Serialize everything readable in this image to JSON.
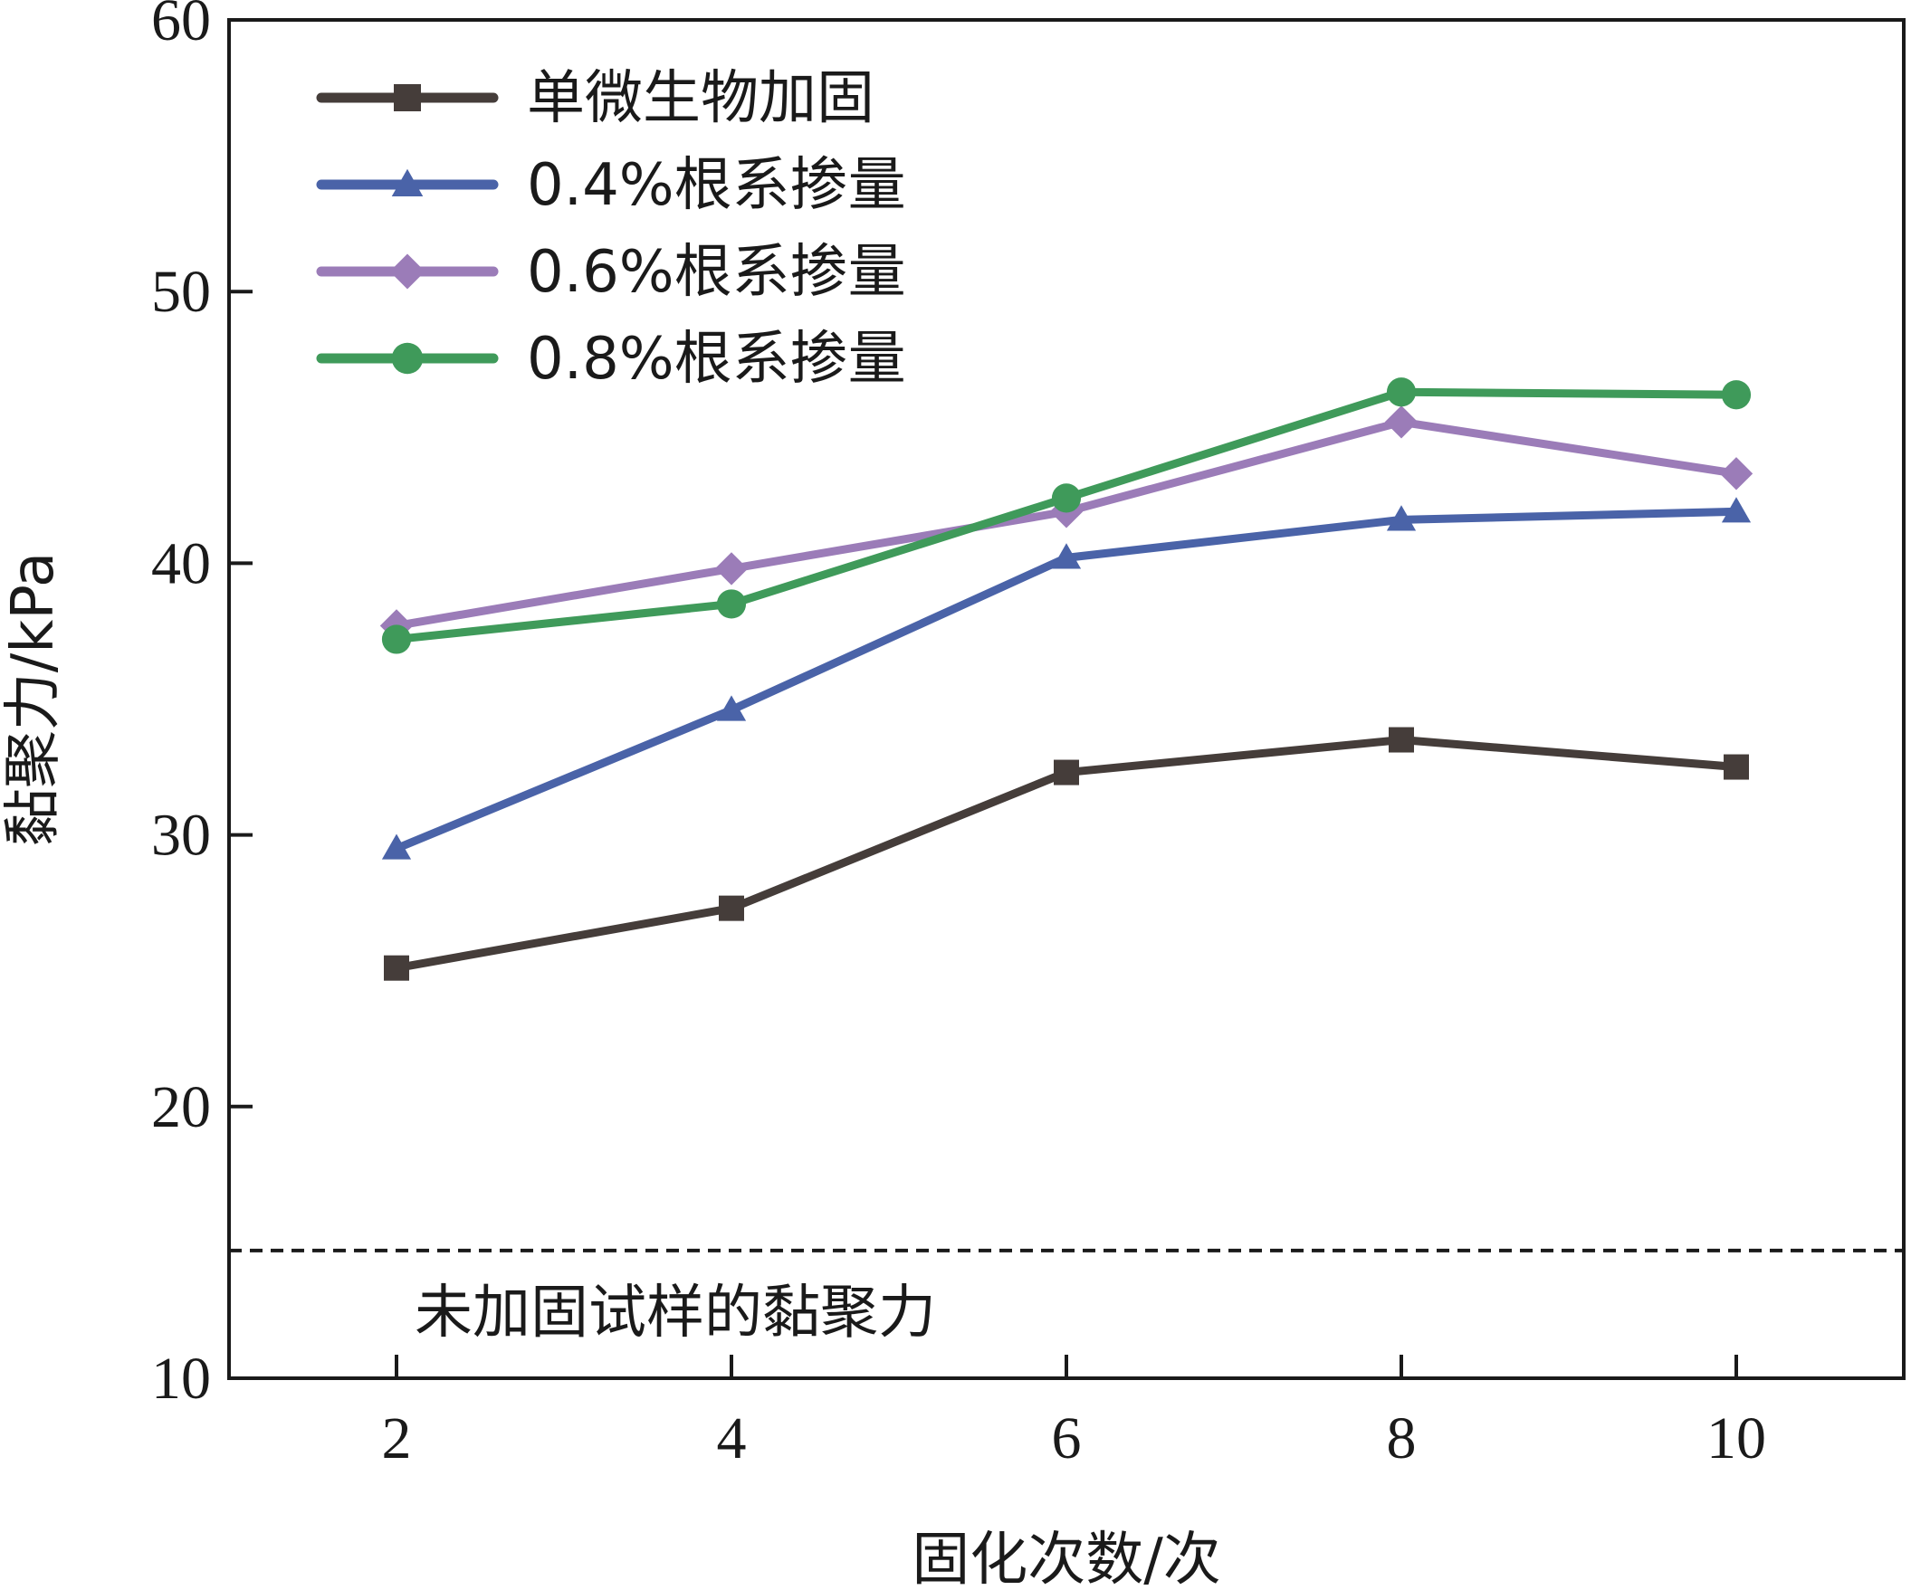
{
  "chart_data": {
    "type": "line",
    "title": "",
    "xlabel": "固化次数/次",
    "ylabel": "黏聚力/kPa",
    "xlim": [
      1,
      11
    ],
    "ylim": [
      10,
      60
    ],
    "x_ticks": [
      "2",
      "4",
      "6",
      "8",
      "10"
    ],
    "y_ticks": [
      "10",
      "20",
      "30",
      "40",
      "50",
      "60"
    ],
    "grid": false,
    "legend_position": "top-left",
    "x": [
      2,
      4,
      6,
      8,
      10
    ],
    "series": [
      {
        "name": "单微生物加固",
        "values": [
          25.1,
          27.3,
          32.3,
          33.5,
          32.5
        ],
        "color": "#453d3a",
        "marker": "square"
      },
      {
        "name": "0.4%根系掺量",
        "values": [
          29.5,
          34.6,
          40.2,
          41.6,
          41.9
        ],
        "color": "#4a63a8",
        "marker": "triangle"
      },
      {
        "name": "0.6%根系掺量",
        "values": [
          37.7,
          39.8,
          41.9,
          45.2,
          43.3
        ],
        "color": "#9b7cb8",
        "marker": "diamond"
      },
      {
        "name": "0.8%根系掺量",
        "values": [
          37.2,
          38.5,
          42.4,
          46.3,
          46.2
        ],
        "color": "#3f9a5a",
        "marker": "circle"
      }
    ],
    "reference_line": {
      "label": "未加固试样的黏聚力",
      "y": 14.7,
      "style": "dashed",
      "color": "#1a1a1a"
    }
  }
}
